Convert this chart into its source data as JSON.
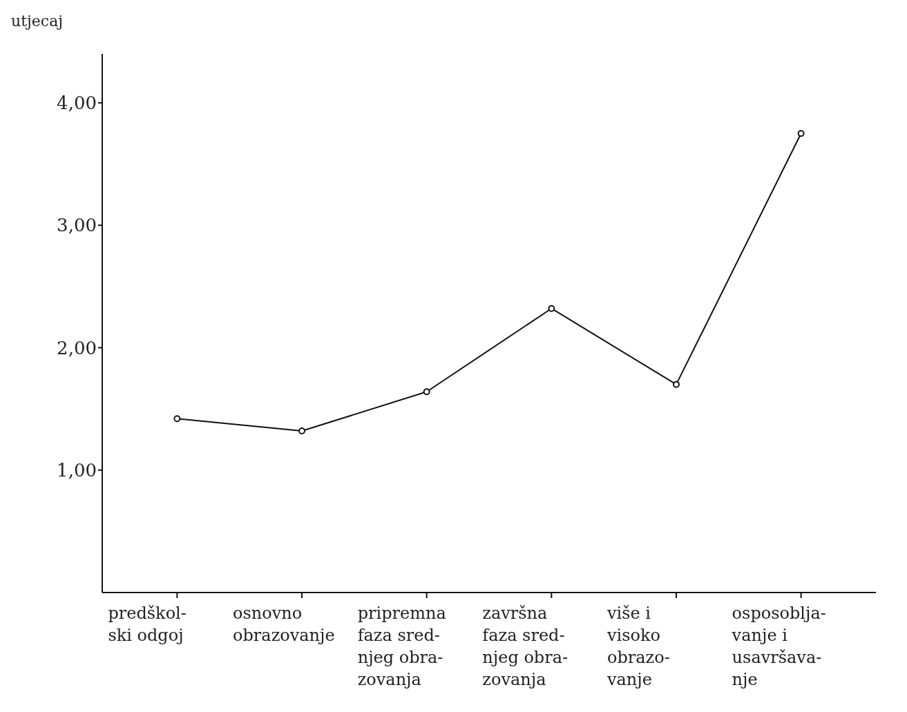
{
  "chart_data": {
    "type": "line",
    "ylabel": "utjecaj",
    "categories": [
      "predškol-\nski odgoj",
      "osnovno\nobrazovanje",
      "pripremna\nfaza sred-\nnjeg obra-\nzovanja",
      "završna\nfaza sred-\nnjeg obra-\nzovanja",
      "više i\nvisoko\nobrazo-\nvanje",
      "osposoblja-\nvanje i\nusavršava-\nnje"
    ],
    "series": [
      {
        "color": "#111111",
        "values": [
          1.42,
          1.32,
          1.64,
          2.32,
          1.7,
          3.75
        ]
      }
    ],
    "ylim": [
      0,
      4.4
    ],
    "yticks": [
      {
        "value": 1,
        "label": "1,00"
      },
      {
        "value": 2,
        "label": "2,00"
      },
      {
        "value": 3,
        "label": "3,00"
      },
      {
        "value": 4,
        "label": "4,00"
      }
    ],
    "grid": false,
    "legend": false,
    "marker": "circle",
    "line_style": "solid"
  }
}
